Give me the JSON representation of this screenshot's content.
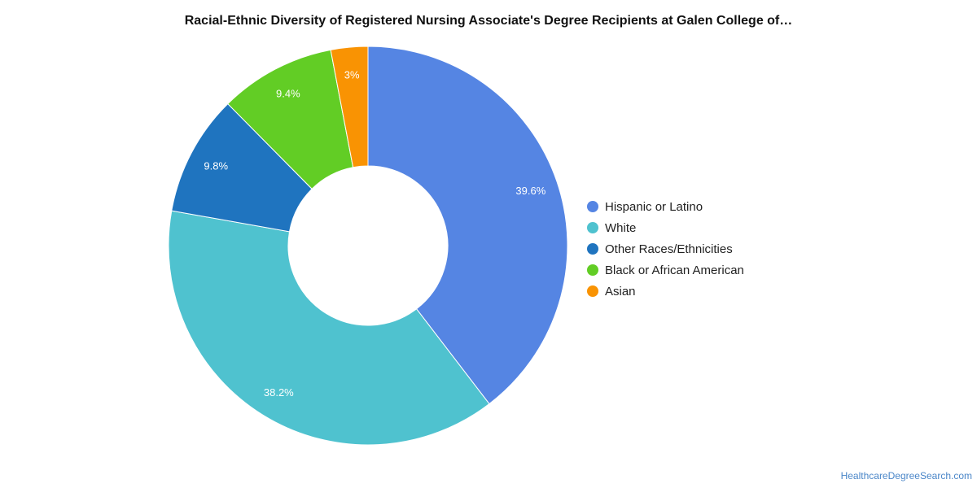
{
  "chart_data": {
    "type": "pie",
    "title": "Racial-Ethnic Diversity of Registered Nursing Associate's Degree Recipients at Galen College of…",
    "legend_position": "right",
    "slices": [
      {
        "label": "Hispanic or Latino",
        "value": 39.6,
        "display": "39.6%",
        "color": "#5585e3"
      },
      {
        "label": "White",
        "value": 38.2,
        "display": "38.2%",
        "color": "#4fc2cf"
      },
      {
        "label": "Other Races/Ethnicities",
        "value": 9.8,
        "display": "9.8%",
        "color": "#1f74bf"
      },
      {
        "label": "Black or African American",
        "value": 9.4,
        "display": "9.4%",
        "color": "#62cd25"
      },
      {
        "label": "Asian",
        "value": 3.0,
        "display": "3%",
        "color": "#f99303"
      }
    ]
  },
  "footer": {
    "source_link": "HealthcareDegreeSearch.com"
  }
}
